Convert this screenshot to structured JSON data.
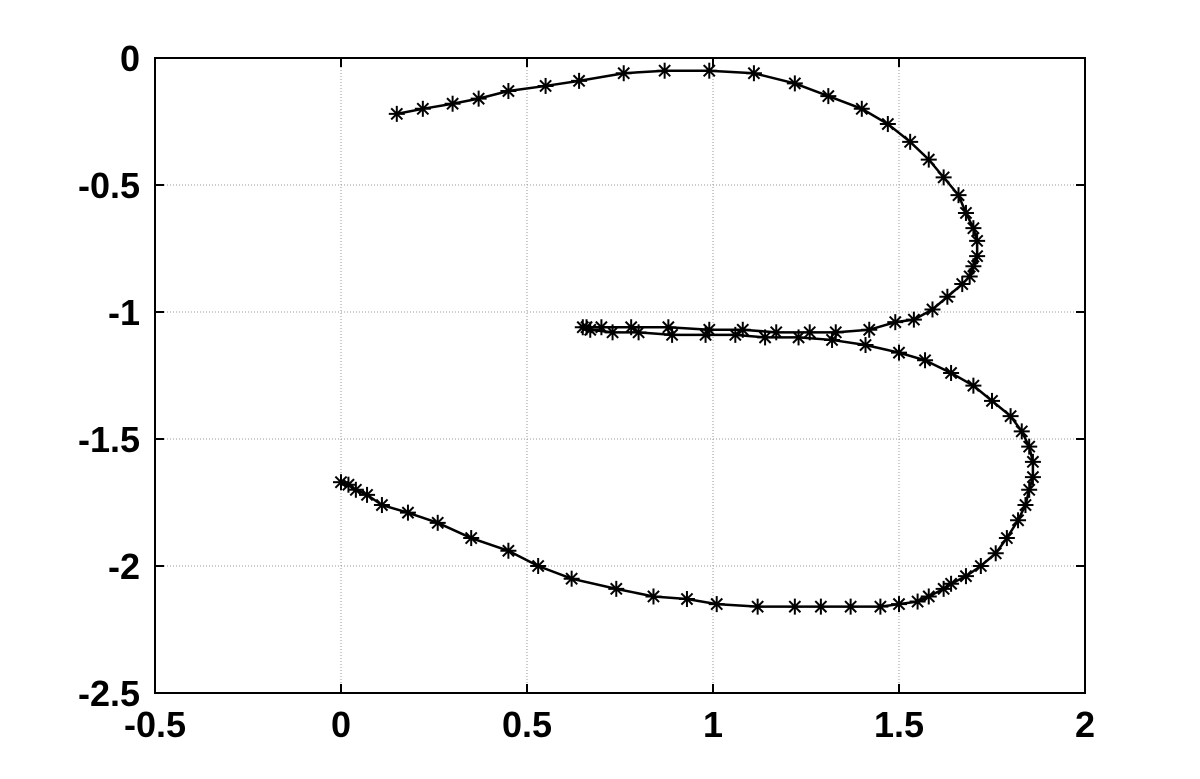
{
  "chart_data": {
    "type": "line",
    "color": "#000000",
    "marker": "asterisk",
    "grid": true,
    "xlim": [
      -0.5,
      2
    ],
    "ylim": [
      -2.5,
      0
    ],
    "xticks": [
      -0.5,
      0,
      0.5,
      1,
      1.5,
      2
    ],
    "yticks": [
      0,
      -0.5,
      -1,
      -1.5,
      -2,
      -2.5
    ],
    "x": [
      0.15,
      0.22,
      0.3,
      0.37,
      0.45,
      0.55,
      0.64,
      0.76,
      0.87,
      0.99,
      1.11,
      1.22,
      1.31,
      1.4,
      1.47,
      1.53,
      1.58,
      1.62,
      1.66,
      1.68,
      1.7,
      1.71,
      1.71,
      1.7,
      1.69,
      1.67,
      1.63,
      1.59,
      1.54,
      1.49,
      1.42,
      1.33,
      1.26,
      1.17,
      1.08,
      0.99,
      0.88,
      0.78,
      0.7,
      0.66,
      0.65,
      0.67,
      0.73,
      0.8,
      0.89,
      0.98,
      1.06,
      1.14,
      1.23,
      1.32,
      1.41,
      1.5,
      1.57,
      1.64,
      1.7,
      1.75,
      1.8,
      1.83,
      1.85,
      1.86,
      1.86,
      1.85,
      1.84,
      1.82,
      1.79,
      1.76,
      1.72,
      1.68,
      1.64,
      1.62,
      1.58,
      1.55,
      1.5,
      1.45,
      1.37,
      1.29,
      1.22,
      1.12,
      1.01,
      0.93,
      0.84,
      0.74,
      0.62,
      0.53,
      0.45,
      0.35,
      0.26,
      0.18,
      0.11,
      0.07,
      0.04,
      0.02,
      0
    ],
    "values": [
      -0.22,
      -0.2,
      -0.18,
      -0.16,
      -0.13,
      -0.11,
      -0.09,
      -0.06,
      -0.05,
      -0.05,
      -0.06,
      -0.1,
      -0.15,
      -0.2,
      -0.26,
      -0.33,
      -0.4,
      -0.47,
      -0.54,
      -0.61,
      -0.67,
      -0.72,
      -0.78,
      -0.82,
      -0.86,
      -0.89,
      -0.94,
      -0.99,
      -1.03,
      -1.04,
      -1.07,
      -1.08,
      -1.08,
      -1.08,
      -1.07,
      -1.07,
      -1.06,
      -1.06,
      -1.06,
      -1.06,
      -1.06,
      -1.07,
      -1.08,
      -1.08,
      -1.09,
      -1.09,
      -1.09,
      -1.1,
      -1.1,
      -1.11,
      -1.13,
      -1.16,
      -1.19,
      -1.24,
      -1.29,
      -1.35,
      -1.41,
      -1.47,
      -1.53,
      -1.59,
      -1.65,
      -1.7,
      -1.76,
      -1.82,
      -1.89,
      -1.95,
      -2.0,
      -2.04,
      -2.07,
      -2.09,
      -2.12,
      -2.14,
      -2.15,
      -2.16,
      -2.16,
      -2.16,
      -2.16,
      -2.16,
      -2.15,
      -2.13,
      -2.12,
      -2.09,
      -2.05,
      -2.0,
      -1.94,
      -1.89,
      -1.83,
      -1.79,
      -1.76,
      -1.72,
      -1.7,
      -1.68,
      -1.67
    ]
  }
}
